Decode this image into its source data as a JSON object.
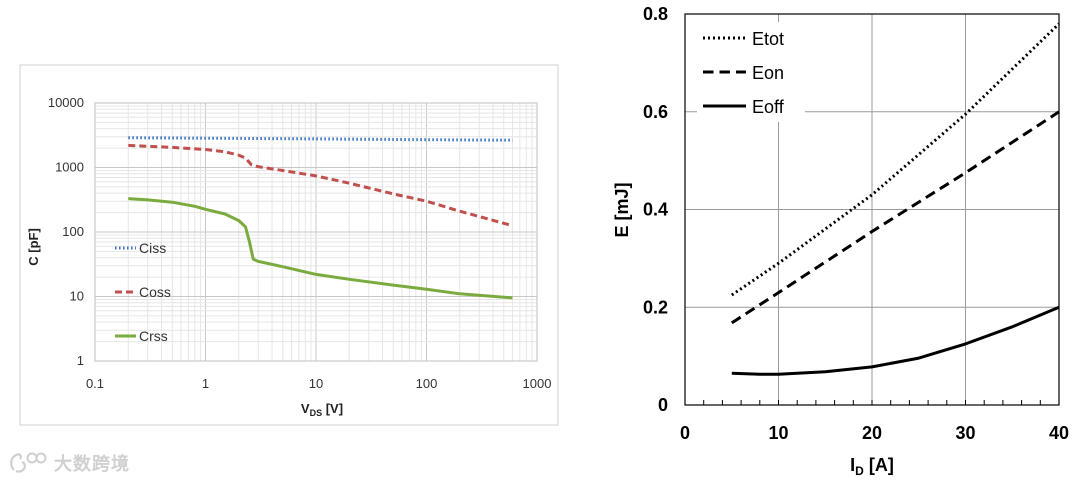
{
  "chart_data": [
    {
      "type": "line",
      "ylabel": "C [pF]",
      "xlabel_main": "V",
      "xlabel_sub": "DS",
      "xlabel_unit": " [V]",
      "xscale": "log",
      "yscale": "log",
      "xlim": [
        0.1,
        1000
      ],
      "ylim": [
        1,
        10000
      ],
      "xticks": [
        "0.1",
        "1",
        "10",
        "100",
        "1000"
      ],
      "yticks": [
        "1",
        "10",
        "100",
        "1000",
        "10000"
      ],
      "grid": true,
      "legend": "left",
      "series": [
        {
          "name": "Ciss",
          "color": "#3f77c1",
          "style": "dotted",
          "points": [
            [
              0.2,
              2900
            ],
            [
              1,
              2850
            ],
            [
              10,
              2780
            ],
            [
              100,
              2700
            ],
            [
              600,
              2650
            ]
          ]
        },
        {
          "name": "Coss",
          "color": "#c0504d",
          "style": "dashed",
          "points": [
            [
              0.2,
              2200
            ],
            [
              0.5,
              2050
            ],
            [
              1,
              1900
            ],
            [
              1.5,
              1750
            ],
            [
              2,
              1550
            ],
            [
              2.3,
              1400
            ],
            [
              2.6,
              1100
            ],
            [
              3,
              1030
            ],
            [
              5,
              900
            ],
            [
              10,
              740
            ],
            [
              20,
              570
            ],
            [
              50,
              390
            ],
            [
              100,
              300
            ],
            [
              200,
              210
            ],
            [
              600,
              125
            ]
          ]
        },
        {
          "name": "Crss",
          "color": "#7aab3e",
          "style": "solid",
          "points": [
            [
              0.2,
              330
            ],
            [
              0.3,
              315
            ],
            [
              0.5,
              290
            ],
            [
              0.8,
              250
            ],
            [
              1,
              225
            ],
            [
              1.5,
              190
            ],
            [
              2,
              150
            ],
            [
              2.3,
              120
            ],
            [
              2.5,
              70
            ],
            [
              2.7,
              38
            ],
            [
              3,
              35
            ],
            [
              5,
              29
            ],
            [
              10,
              22
            ],
            [
              20,
              18.5
            ],
            [
              50,
              15
            ],
            [
              100,
              13
            ],
            [
              200,
              11
            ],
            [
              600,
              9.5
            ]
          ]
        }
      ]
    },
    {
      "type": "line",
      "ylabel": "E [mJ]",
      "xlabel_main": "I",
      "xlabel_sub": "D",
      "xlabel_unit": " [A]",
      "xlim": [
        0,
        40
      ],
      "ylim": [
        0,
        0.8
      ],
      "xticks": [
        "0",
        "10",
        "20",
        "30",
        "40"
      ],
      "yticks": [
        "0",
        "0.2",
        "0.4",
        "0.6",
        "0.8"
      ],
      "grid": true,
      "legend": "top-left",
      "series": [
        {
          "name": "Etot",
          "color": "#000000",
          "style": "dotted",
          "points": [
            [
              5,
              0.225
            ],
            [
              10,
              0.29
            ],
            [
              20,
              0.43
            ],
            [
              30,
              0.595
            ],
            [
              40,
              0.78
            ]
          ]
        },
        {
          "name": "Eon",
          "color": "#000000",
          "style": "dashed",
          "points": [
            [
              5,
              0.168
            ],
            [
              10,
              0.23
            ],
            [
              20,
              0.355
            ],
            [
              30,
              0.475
            ],
            [
              40,
              0.6
            ]
          ]
        },
        {
          "name": "Eoff",
          "color": "#000000",
          "style": "solid",
          "points": [
            [
              5,
              0.065
            ],
            [
              8,
              0.063
            ],
            [
              10,
              0.063
            ],
            [
              15,
              0.068
            ],
            [
              20,
              0.078
            ],
            [
              25,
              0.096
            ],
            [
              30,
              0.125
            ],
            [
              35,
              0.16
            ],
            [
              40,
              0.2
            ]
          ]
        }
      ]
    }
  ],
  "watermark": {
    "text": "大数跨境"
  }
}
